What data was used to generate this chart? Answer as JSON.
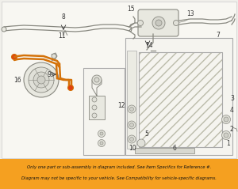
{
  "bg_color": "#f0efea",
  "banner_color": "#f5a020",
  "banner_text1": "Only one part or sub-assembly in diagram included. See Item Specifics for Reference #.",
  "banner_text2": "Diagram may not be specific to your vehicle. See Compatibility for vehicle-specific diagrams.",
  "banner_text_color": "#111111",
  "line_color": "#888880",
  "highlight_color": "#d4720a",
  "label_color": "#333333",
  "box_edge": "#aaaaaa",
  "hatch_color": "#ccccc0"
}
